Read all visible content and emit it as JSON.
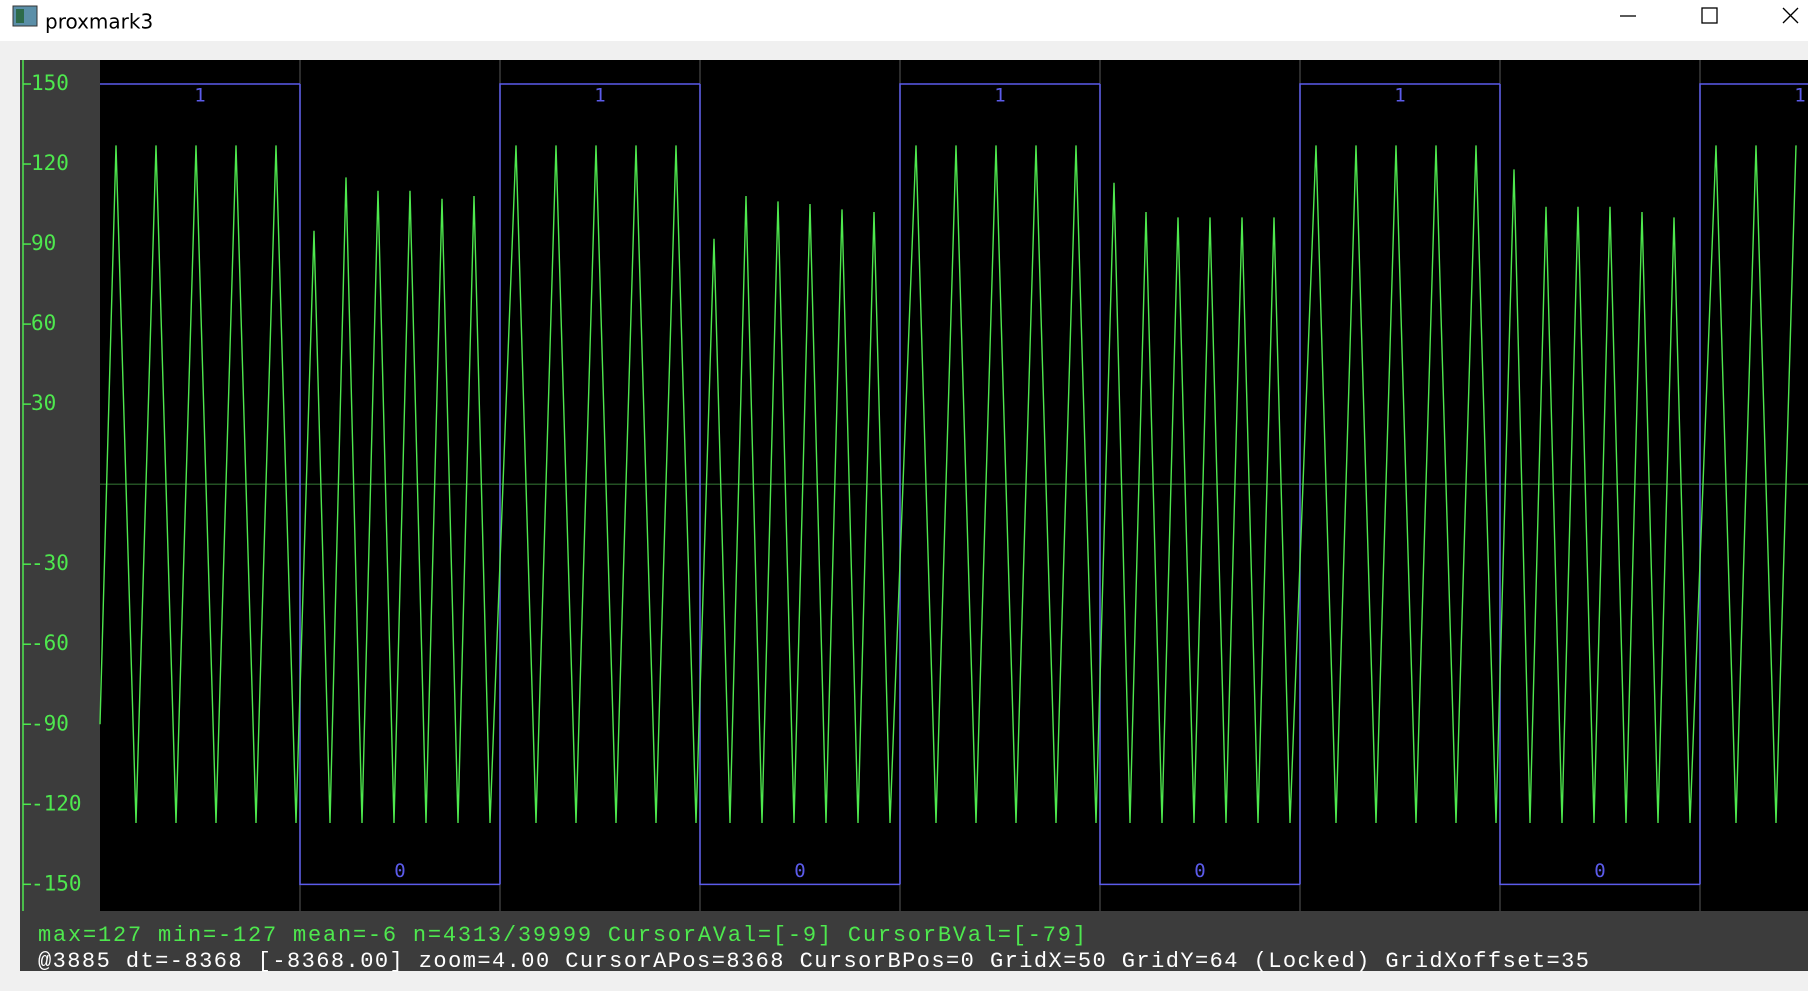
{
  "window": {
    "title": "proxmark3"
  },
  "chart_data": {
    "type": "line",
    "ylim": [
      -160,
      159
    ],
    "yticks": [
      150,
      120,
      90,
      60,
      30,
      -30,
      -60,
      -90,
      -120,
      -150
    ],
    "xlim": [
      0,
      427
    ],
    "xgrid": [
      50,
      100,
      150,
      200,
      250,
      300,
      350,
      400
    ],
    "series": [
      {
        "color": "#4ee84e",
        "x": [
          0,
          4,
          9,
          14,
          19,
          24,
          29,
          34,
          39,
          44,
          49,
          53.5,
          57.5,
          61.5,
          65.5,
          69.5,
          73.5,
          77.5,
          81.5,
          85.5,
          89.5,
          93.5,
          97.5,
          104,
          109,
          114,
          119,
          124,
          129,
          134,
          139,
          144,
          149,
          153.5,
          157.5,
          161.5,
          165.5,
          169.5,
          173.5,
          177.5,
          181.5,
          185.5,
          189.5,
          193.5,
          197.5,
          204,
          209,
          214,
          219,
          224,
          229,
          234,
          239,
          244,
          249,
          253.5,
          257.5,
          261.5,
          265.5,
          269.5,
          273.5,
          277.5,
          281.5,
          285.5,
          289.5,
          293.5,
          297.5,
          304,
          309,
          314,
          319,
          324,
          329,
          334,
          339,
          344,
          349,
          353.5,
          357.5,
          361.5,
          365.5,
          369.5,
          373.5,
          377.5,
          381.5,
          385.5,
          389.5,
          393.5,
          397.5,
          404,
          409,
          414,
          419,
          424
        ],
        "values": [
          -90,
          127,
          -127,
          127,
          -127,
          127,
          -127,
          127,
          -127,
          127,
          -127,
          95,
          -127,
          115,
          -127,
          110,
          -127,
          110,
          -127,
          107,
          -127,
          108,
          -127,
          127,
          -127,
          127,
          -127,
          127,
          -127,
          127,
          -127,
          127,
          -127,
          92,
          -127,
          108,
          -127,
          106,
          -127,
          105,
          -127,
          103,
          -127,
          102,
          -127,
          127,
          -127,
          127,
          -127,
          127,
          -127,
          127,
          -127,
          127,
          -127,
          113,
          -127,
          102,
          -127,
          100,
          -127,
          100,
          -127,
          100,
          -127,
          100,
          -127,
          127,
          -127,
          127,
          -127,
          127,
          -127,
          127,
          -127,
          127,
          -127,
          118,
          -127,
          104,
          -127,
          104,
          -127,
          104,
          -127,
          102,
          -127,
          100,
          -127,
          127,
          -127,
          127,
          -127,
          127
        ]
      }
    ],
    "demod": {
      "color": "#5b5bea",
      "high": 150,
      "low": -150,
      "x": [
        0,
        50,
        100,
        150,
        200,
        250,
        300,
        350,
        400
      ],
      "values": [
        1,
        0,
        1,
        0,
        1,
        0,
        1,
        0,
        1
      ]
    }
  },
  "status": {
    "line1": "max=127  min=-127  mean=-6  n=4313/39999  CursorAVal=[-9]  CursorBVal=[-79]",
    "line2": "@3885  dt=-8368 [-8368.00] zoom=4.00  CursorAPos=8368  CursorBPos=0  GridX=50  GridY=64 (Locked) GridXoffset=35"
  }
}
